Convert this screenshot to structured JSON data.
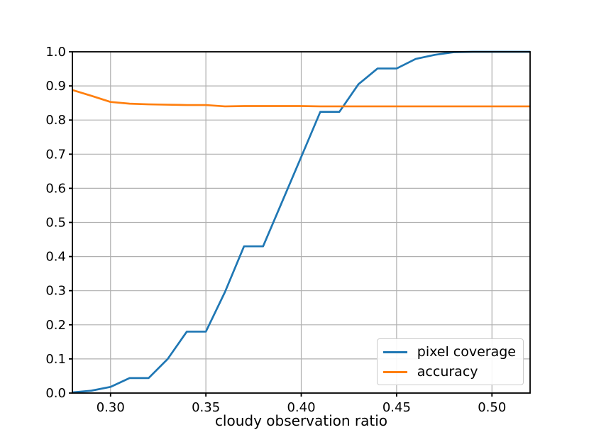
{
  "chart_data": {
    "type": "line",
    "title": "",
    "xlabel": "cloudy observation ratio",
    "ylabel": "",
    "xlim": [
      0.28,
      0.52
    ],
    "ylim": [
      0.0,
      1.0
    ],
    "grid": true,
    "grid_color": "#b0b0b0",
    "axis_color": "#000000",
    "background_color": "#ffffff",
    "legend_position": "lower right",
    "x_ticks": [
      0.3,
      0.35,
      0.4,
      0.45,
      0.5
    ],
    "x_tick_labels": [
      "0.30",
      "0.35",
      "0.40",
      "0.45",
      "0.50"
    ],
    "y_ticks": [
      0.0,
      0.1,
      0.2,
      0.3,
      0.4,
      0.5,
      0.6,
      0.7,
      0.8,
      0.9,
      1.0
    ],
    "y_tick_labels": [
      "0.0",
      "0.1",
      "0.2",
      "0.3",
      "0.4",
      "0.5",
      "0.6",
      "0.7",
      "0.8",
      "0.9",
      "1.0"
    ],
    "x": [
      0.28,
      0.29,
      0.3,
      0.31,
      0.32,
      0.33,
      0.34,
      0.35,
      0.36,
      0.37,
      0.38,
      0.39,
      0.4,
      0.41,
      0.42,
      0.43,
      0.44,
      0.45,
      0.46,
      0.47,
      0.48,
      0.49,
      0.5,
      0.51,
      0.52
    ],
    "series": [
      {
        "name": "pixel coverage",
        "color": "#1f77b4",
        "values": [
          0.002,
          0.007,
          0.018,
          0.044,
          0.044,
          0.1,
          0.18,
          0.18,
          0.296,
          0.43,
          0.43,
          0.561,
          0.692,
          0.824,
          0.824,
          0.905,
          0.951,
          0.951,
          0.979,
          0.991,
          0.999,
          1.0,
          1.0,
          1.0,
          1.0
        ]
      },
      {
        "name": "accuracy",
        "color": "#ff7f0e",
        "values": [
          0.888,
          0.871,
          0.853,
          0.848,
          0.846,
          0.845,
          0.844,
          0.844,
          0.84,
          0.841,
          0.841,
          0.841,
          0.841,
          0.84,
          0.84,
          0.84,
          0.84,
          0.84,
          0.84,
          0.84,
          0.84,
          0.84,
          0.84,
          0.84,
          0.84
        ]
      }
    ]
  }
}
